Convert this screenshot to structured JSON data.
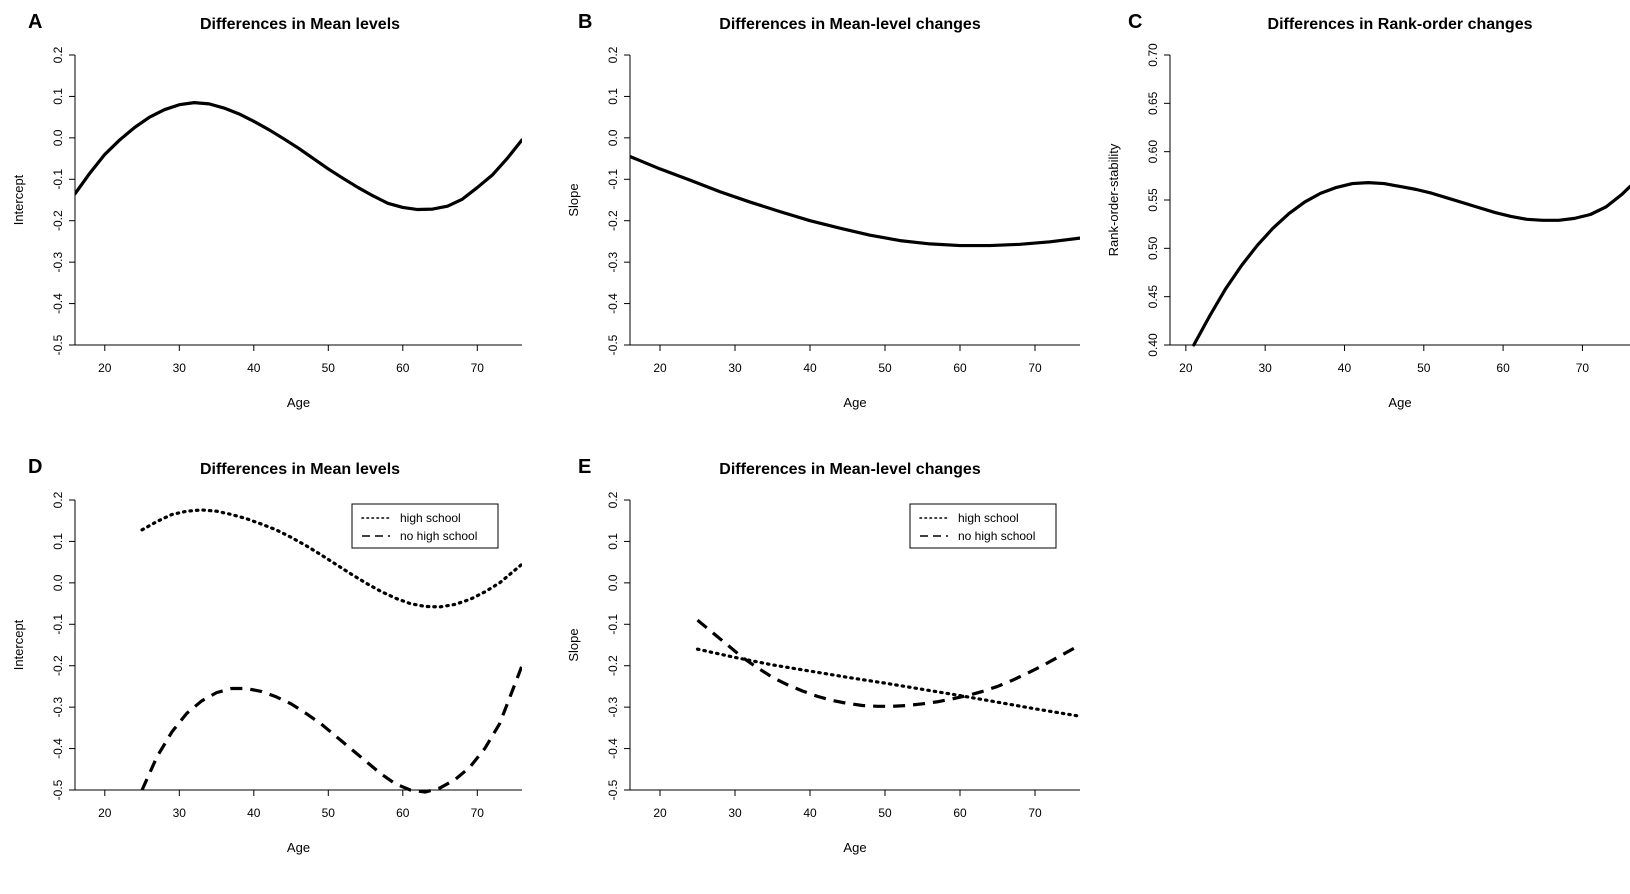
{
  "chart_data": [
    {
      "panel": "A",
      "type": "line",
      "title": "Differences in Mean levels",
      "xlabel": "Age",
      "ylabel": "Intercept",
      "xlim": [
        16,
        76
      ],
      "ylim": [
        -0.5,
        0.2
      ],
      "xticks": [
        "20",
        "30",
        "40",
        "50",
        "60",
        "70"
      ],
      "yticks": [
        "-0.5",
        "-0.4",
        "-0.3",
        "-0.2",
        "-0.1",
        "0.0",
        "0.1",
        "0.2"
      ],
      "series": [
        {
          "style": "solid",
          "x": [
            16,
            18,
            20,
            22,
            24,
            26,
            28,
            30,
            32,
            34,
            36,
            38,
            40,
            42,
            44,
            46,
            48,
            50,
            52,
            54,
            56,
            58,
            60,
            62,
            64,
            66,
            68,
            70,
            72,
            74,
            76
          ],
          "y": [
            -0.135,
            -0.085,
            -0.04,
            -0.005,
            0.025,
            0.05,
            0.068,
            0.08,
            0.085,
            0.082,
            0.072,
            0.058,
            0.04,
            0.02,
            -0.002,
            -0.025,
            -0.05,
            -0.075,
            -0.098,
            -0.12,
            -0.14,
            -0.158,
            -0.168,
            -0.173,
            -0.172,
            -0.165,
            -0.148,
            -0.12,
            -0.09,
            -0.05,
            -0.005
          ]
        }
      ]
    },
    {
      "panel": "B",
      "type": "line",
      "title": "Differences in Mean-level changes",
      "xlabel": "Age",
      "ylabel": "Slope",
      "xlim": [
        16,
        76
      ],
      "ylim": [
        -0.5,
        0.2
      ],
      "xticks": [
        "20",
        "30",
        "40",
        "50",
        "60",
        "70"
      ],
      "yticks": [
        "-0.5",
        "-0.4",
        "-0.3",
        "-0.2",
        "-0.1",
        "0.0",
        "0.1",
        "0.2"
      ],
      "series": [
        {
          "style": "solid",
          "x": [
            16,
            20,
            24,
            28,
            32,
            36,
            40,
            44,
            48,
            52,
            56,
            60,
            64,
            68,
            72,
            76
          ],
          "y": [
            -0.045,
            -0.075,
            -0.102,
            -0.13,
            -0.155,
            -0.178,
            -0.2,
            -0.218,
            -0.235,
            -0.248,
            -0.256,
            -0.26,
            -0.26,
            -0.257,
            -0.251,
            -0.242
          ]
        }
      ]
    },
    {
      "panel": "C",
      "type": "line",
      "title": "Differences in Rank-order changes",
      "xlabel": "Age",
      "ylabel": "Rank-order-stability",
      "xlim": [
        18,
        76
      ],
      "ylim": [
        0.4,
        0.7
      ],
      "xticks": [
        "20",
        "30",
        "40",
        "50",
        "60",
        "70"
      ],
      "yticks": [
        "0.40",
        "0.45",
        "0.50",
        "0.55",
        "0.60",
        "0.65",
        "0.70"
      ],
      "series": [
        {
          "style": "solid",
          "x": [
            21,
            23,
            25,
            27,
            29,
            31,
            33,
            35,
            37,
            39,
            41,
            43,
            45,
            47,
            49,
            51,
            53,
            55,
            57,
            59,
            61,
            63,
            65,
            67,
            69,
            71,
            73,
            75,
            76
          ],
          "y": [
            0.4,
            0.43,
            0.458,
            0.482,
            0.503,
            0.521,
            0.536,
            0.548,
            0.557,
            0.563,
            0.567,
            0.568,
            0.567,
            0.564,
            0.561,
            0.557,
            0.552,
            0.547,
            0.542,
            0.537,
            0.533,
            0.53,
            0.529,
            0.529,
            0.531,
            0.535,
            0.543,
            0.556,
            0.564
          ]
        }
      ]
    },
    {
      "panel": "D",
      "type": "line",
      "title": "Differences in Mean levels",
      "xlabel": "Age",
      "ylabel": "Intercept",
      "xlim": [
        16,
        76
      ],
      "ylim": [
        -0.5,
        0.2
      ],
      "xticks": [
        "20",
        "30",
        "40",
        "50",
        "60",
        "70"
      ],
      "yticks": [
        "-0.5",
        "-0.4",
        "-0.3",
        "-0.2",
        "-0.1",
        "0.0",
        "0.1",
        "0.2"
      ],
      "legend": {
        "position": "top-right"
      },
      "series": [
        {
          "name": "high school",
          "style": "dotted",
          "x": [
            25,
            27,
            29,
            31,
            33,
            35,
            37,
            39,
            41,
            43,
            45,
            47,
            49,
            51,
            53,
            55,
            57,
            59,
            61,
            63,
            65,
            67,
            69,
            71,
            73,
            76
          ],
          "y": [
            0.128,
            0.148,
            0.165,
            0.173,
            0.176,
            0.173,
            0.165,
            0.155,
            0.142,
            0.128,
            0.11,
            0.09,
            0.068,
            0.045,
            0.022,
            0.0,
            -0.02,
            -0.037,
            -0.05,
            -0.057,
            -0.058,
            -0.052,
            -0.04,
            -0.022,
            0.0,
            0.045
          ]
        },
        {
          "name": "no high school",
          "style": "dashed",
          "x": [
            25,
            27,
            29,
            31,
            33,
            35,
            37,
            39,
            41,
            43,
            45,
            47,
            49,
            51,
            53,
            55,
            57,
            59,
            61,
            63,
            65,
            67,
            69,
            71,
            73,
            76
          ],
          "y": [
            -0.5,
            -0.42,
            -0.36,
            -0.315,
            -0.285,
            -0.265,
            -0.255,
            -0.255,
            -0.262,
            -0.275,
            -0.292,
            -0.315,
            -0.34,
            -0.37,
            -0.4,
            -0.43,
            -0.46,
            -0.485,
            -0.5,
            -0.505,
            -0.495,
            -0.475,
            -0.445,
            -0.4,
            -0.34,
            -0.2
          ]
        }
      ]
    },
    {
      "panel": "E",
      "type": "line",
      "title": "Differences in Mean-level changes",
      "xlabel": "Age",
      "ylabel": "Slope",
      "xlim": [
        16,
        76
      ],
      "ylim": [
        -0.5,
        0.2
      ],
      "xticks": [
        "20",
        "30",
        "40",
        "50",
        "60",
        "70"
      ],
      "yticks": [
        "-0.5",
        "-0.4",
        "-0.3",
        "-0.2",
        "-0.1",
        "0.0",
        "0.1",
        "0.2"
      ],
      "legend": {
        "position": "top-right"
      },
      "series": [
        {
          "name": "high school",
          "style": "dotted",
          "x": [
            25,
            30,
            35,
            40,
            45,
            50,
            55,
            60,
            65,
            70,
            76
          ],
          "y": [
            -0.16,
            -0.18,
            -0.198,
            -0.213,
            -0.228,
            -0.242,
            -0.257,
            -0.272,
            -0.288,
            -0.304,
            -0.322
          ]
        },
        {
          "name": "no high school",
          "style": "dashed",
          "x": [
            25,
            27,
            29,
            31,
            33,
            35,
            37,
            39,
            41,
            43,
            45,
            47,
            49,
            51,
            53,
            55,
            57,
            59,
            61,
            63,
            65,
            67,
            69,
            71,
            73,
            76
          ],
          "y": [
            -0.09,
            -0.12,
            -0.15,
            -0.18,
            -0.205,
            -0.228,
            -0.246,
            -0.261,
            -0.274,
            -0.284,
            -0.291,
            -0.296,
            -0.298,
            -0.298,
            -0.296,
            -0.292,
            -0.287,
            -0.28,
            -0.272,
            -0.262,
            -0.25,
            -0.235,
            -0.218,
            -0.2,
            -0.18,
            -0.15
          ]
        }
      ]
    }
  ]
}
